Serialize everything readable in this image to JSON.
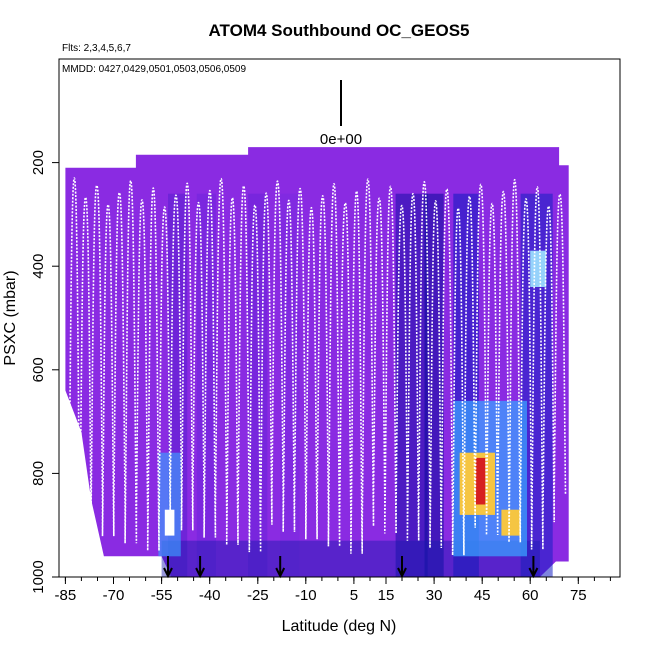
{
  "chart_data": {
    "type": "heatmap",
    "title": "ATOM4 Southbound OC_GEOS5",
    "flights_label": "Flts: 2,3,4,5,6,7",
    "mmdd_label": "MMDD: 0427,0429,0501,0503,0506,0509",
    "legend_value": "0e+00",
    "xlabel": "Latitude (deg N)",
    "ylabel": "PSXC (mbar)",
    "xlim": [
      -87,
      88
    ],
    "ylim": [
      1000,
      0
    ],
    "x_ticks": [
      "-85",
      "-70",
      "-55",
      "-40",
      "-25",
      "-10",
      "5",
      "15",
      "30",
      "45",
      "60",
      "75"
    ],
    "x_tick_values": [
      -85,
      -70,
      -55,
      -40,
      -25,
      -10,
      5,
      15,
      30,
      45,
      60,
      75
    ],
    "y_ticks": [
      "200",
      "400",
      "600",
      "800",
      "1000"
    ],
    "y_tick_values": [
      200,
      400,
      600,
      800,
      1000
    ],
    "background_color": "#8a2be2",
    "curtain_extent": {
      "lat": [
        -85,
        72
      ],
      "psxc_top_by_lat": [
        [
          -85,
          210
        ],
        [
          -63,
          210
        ],
        [
          -63,
          185
        ],
        [
          -28,
          185
        ],
        [
          -28,
          170
        ],
        [
          69,
          170
        ],
        [
          69,
          205
        ],
        [
          72,
          205
        ]
      ],
      "psxc_bottom_by_lat": [
        [
          -85,
          640
        ],
        [
          -80,
          720
        ],
        [
          -77,
          850
        ],
        [
          -73,
          960
        ],
        [
          -55,
          960
        ],
        [
          -52,
          1000
        ],
        [
          63,
          1000
        ],
        [
          68,
          970
        ],
        [
          72,
          970
        ]
      ]
    },
    "high_values": [
      {
        "lat": [
          38,
          49
        ],
        "psxc": [
          760,
          880
        ],
        "color": "#f5c542"
      },
      {
        "lat": [
          43,
          46
        ],
        "psxc": [
          770,
          860
        ],
        "color": "#d62020"
      },
      {
        "lat": [
          51,
          57
        ],
        "psxc": [
          870,
          920
        ],
        "color": "#f5c542"
      },
      {
        "lat": [
          -54,
          -51
        ],
        "psxc": [
          870,
          920
        ],
        "color": "#ffffff"
      }
    ],
    "profile_count": 44,
    "profile_min_psxc": 230,
    "profile_max_psxc": 960,
    "arrow_lats": [
      -53,
      -43,
      -18,
      20,
      61
    ]
  }
}
